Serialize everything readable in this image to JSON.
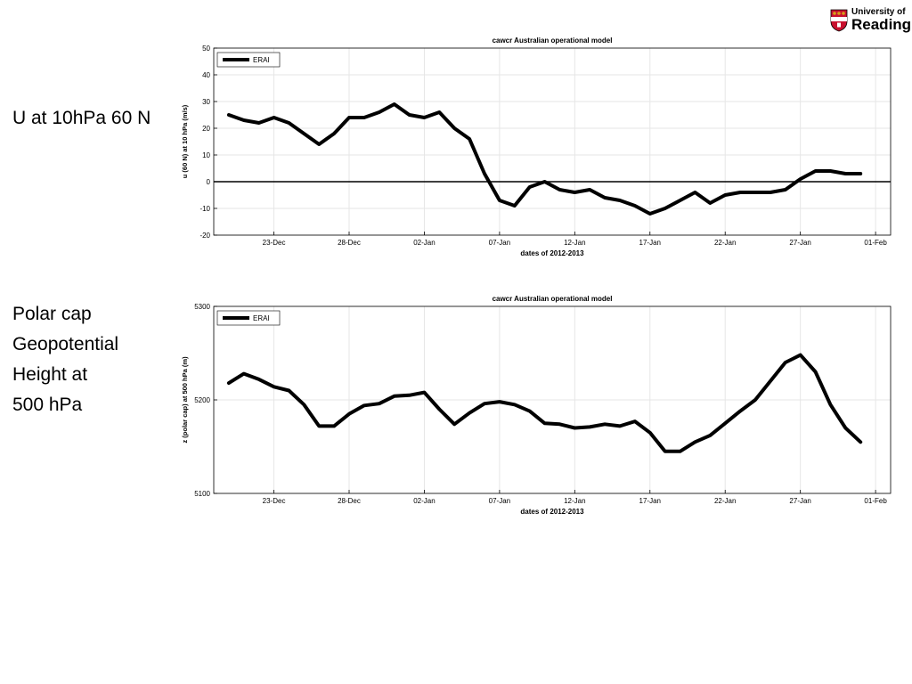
{
  "labels": {
    "top": "U at 10hPa 60 N",
    "bottom": [
      "Polar cap",
      "Geopotential",
      "Height at",
      "500 hPa"
    ]
  },
  "logo": {
    "line1": "University of",
    "line2": "Reading",
    "colors": {
      "red": "#c8102e",
      "gold": "#d4a017"
    }
  },
  "colors": {
    "series": "#000000",
    "grid": "#e6e6e6",
    "axis": "#000000"
  },
  "x_ticks": [
    "23-Dec",
    "28-Dec",
    "02-Jan",
    "07-Jan",
    "12-Jan",
    "17-Jan",
    "22-Jan",
    "27-Jan",
    "01-Feb"
  ],
  "chart_data": [
    {
      "type": "line",
      "title": "cawcr Australian operational model",
      "xlabel": "dates of 2012-2013",
      "ylabel": "u (60 N) at 10 hPa (m/s)",
      "xlim": [
        "2012-12-19",
        "2013-02-02"
      ],
      "ylim": [
        -20,
        50
      ],
      "yticks": [
        50,
        40,
        30,
        20,
        10,
        0,
        -10,
        -20
      ],
      "zero_line": true,
      "grid": true,
      "legend": "top-left",
      "series": [
        {
          "name": "ERAI",
          "x": [
            "2012-12-20",
            "2012-12-21",
            "2012-12-22",
            "2012-12-23",
            "2012-12-24",
            "2012-12-25",
            "2012-12-26",
            "2012-12-27",
            "2012-12-28",
            "2012-12-29",
            "2012-12-30",
            "2012-12-31",
            "2013-01-01",
            "2013-01-02",
            "2013-01-03",
            "2013-01-04",
            "2013-01-05",
            "2013-01-06",
            "2013-01-07",
            "2013-01-08",
            "2013-01-09",
            "2013-01-10",
            "2013-01-11",
            "2013-01-12",
            "2013-01-13",
            "2013-01-14",
            "2013-01-15",
            "2013-01-16",
            "2013-01-17",
            "2013-01-18",
            "2013-01-19",
            "2013-01-20",
            "2013-01-21",
            "2013-01-22",
            "2013-01-23",
            "2013-01-24",
            "2013-01-25",
            "2013-01-26",
            "2013-01-27",
            "2013-01-28",
            "2013-01-29",
            "2013-01-30",
            "2013-01-31"
          ],
          "y": [
            25,
            23,
            22,
            24,
            22,
            18,
            14,
            18,
            24,
            24,
            26,
            29,
            25,
            24,
            26,
            20,
            16,
            3,
            -7,
            -9,
            -2,
            0,
            -3,
            -4,
            -3,
            -6,
            -7,
            -9,
            -12,
            -10,
            -7,
            -4,
            -8,
            -5,
            -4,
            -4,
            -4,
            -3,
            1,
            4,
            4,
            3,
            3
          ]
        }
      ]
    },
    {
      "type": "line",
      "title": "cawcr Australian operational model",
      "xlabel": "dates of 2012-2013",
      "ylabel": "z (polar cap) at 500 hPa (m)",
      "xlim": [
        "2012-12-19",
        "2013-02-02"
      ],
      "ylim": [
        5100,
        5300
      ],
      "yticks": [
        5300,
        5200,
        5100
      ],
      "zero_line": false,
      "grid": true,
      "legend": "top-left",
      "series": [
        {
          "name": "ERAI",
          "x": [
            "2012-12-20",
            "2012-12-21",
            "2012-12-22",
            "2012-12-23",
            "2012-12-24",
            "2012-12-25",
            "2012-12-26",
            "2012-12-27",
            "2012-12-28",
            "2012-12-29",
            "2012-12-30",
            "2012-12-31",
            "2013-01-01",
            "2013-01-02",
            "2013-01-03",
            "2013-01-04",
            "2013-01-05",
            "2013-01-06",
            "2013-01-07",
            "2013-01-08",
            "2013-01-09",
            "2013-01-10",
            "2013-01-11",
            "2013-01-12",
            "2013-01-13",
            "2013-01-14",
            "2013-01-15",
            "2013-01-16",
            "2013-01-17",
            "2013-01-18",
            "2013-01-19",
            "2013-01-20",
            "2013-01-21",
            "2013-01-22",
            "2013-01-23",
            "2013-01-24",
            "2013-01-25",
            "2013-01-26",
            "2013-01-27",
            "2013-01-28",
            "2013-01-29",
            "2013-01-30",
            "2013-01-31"
          ],
          "y": [
            5218,
            5228,
            5222,
            5214,
            5210,
            5195,
            5172,
            5172,
            5185,
            5194,
            5196,
            5204,
            5205,
            5208,
            5190,
            5174,
            5186,
            5196,
            5198,
            5195,
            5188,
            5175,
            5174,
            5170,
            5171,
            5174,
            5172,
            5177,
            5165,
            5145,
            5145,
            5155,
            5162,
            5175,
            5188,
            5200,
            5220,
            5240,
            5248,
            5230,
            5195,
            5170,
            5155
          ]
        }
      ]
    }
  ]
}
